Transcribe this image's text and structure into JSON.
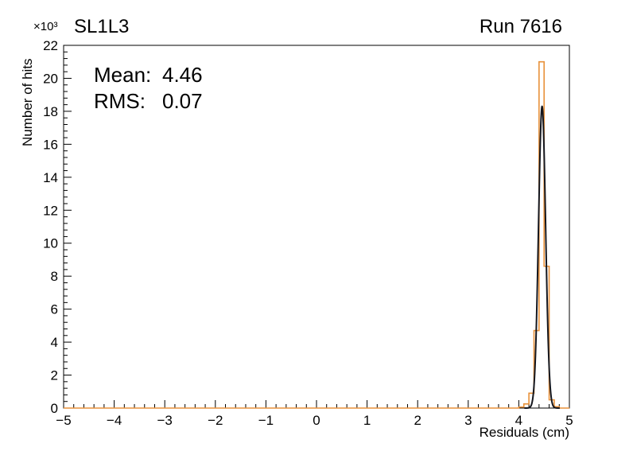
{
  "chart_data": {
    "type": "histogram",
    "title": "SL1L3",
    "run_label": "Run 7616",
    "xlabel": "Residuals (cm)",
    "ylabel": "Number of hits",
    "y_axis_multiplier": "×10³",
    "xlim": [
      -5,
      5
    ],
    "ylim": [
      0,
      22000
    ],
    "x_ticks": [
      -5,
      -4,
      -3,
      -2,
      -1,
      0,
      1,
      2,
      3,
      4,
      5
    ],
    "x_tick_labels": [
      "−5",
      "−4",
      "−3",
      "−2",
      "−1",
      "0",
      "1",
      "2",
      "3",
      "4",
      "5"
    ],
    "x_minor_per_major": 5,
    "y_ticks": [
      0,
      2000,
      4000,
      6000,
      8000,
      10000,
      12000,
      14000,
      16000,
      18000,
      20000,
      22000
    ],
    "y_tick_labels": [
      "0",
      "2",
      "4",
      "6",
      "8",
      "10",
      "12",
      "14",
      "16",
      "18",
      "20",
      "22"
    ],
    "y_minor_per_major": 5,
    "grid": false,
    "stats": {
      "mean_label": "Mean:",
      "mean_value": "4.46",
      "rms_label": "RMS:",
      "rms_value": "0.07"
    },
    "histogram": {
      "color": "#e8913a",
      "x_start": 4.0,
      "bin_width": 0.1,
      "counts": [
        60,
        250,
        900,
        4700,
        21000,
        8600,
        500,
        80
      ]
    },
    "fit_curve": {
      "color": "#15171e",
      "mean": 4.46,
      "sigma": 0.07,
      "amplitude": 18300
    }
  }
}
